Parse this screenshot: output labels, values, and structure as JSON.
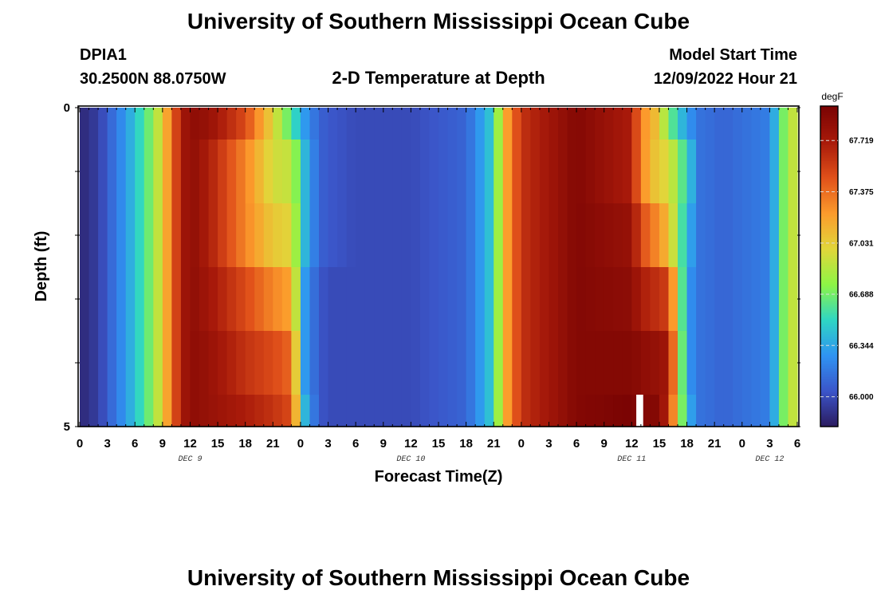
{
  "header": {
    "title": "University of Southern Mississippi Ocean Cube",
    "station_id": "DPIA1",
    "station_coords": "30.2500N  88.0750W",
    "plot_title": "2-D Temperature at Depth",
    "model_start_label": "Model Start Time",
    "model_start_value": "12/09/2022 Hour 21"
  },
  "footer": {
    "title": "University of Southern Mississippi Ocean Cube"
  },
  "chart_data": {
    "type": "heatmap",
    "title": "2-D Temperature at Depth",
    "xlabel": "Forecast Time(Z)",
    "ylabel": "Depth (ft)",
    "colorbar_unit": "degF",
    "x_tick_labels": [
      "0",
      "3",
      "6",
      "9",
      "12",
      "15",
      "18",
      "21",
      "0",
      "3",
      "6",
      "9",
      "12",
      "15",
      "18",
      "21",
      "0",
      "3",
      "6",
      "9",
      "12",
      "15",
      "18",
      "21",
      "0",
      "3",
      "6"
    ],
    "day_labels": [
      {
        "label": "DEC 9",
        "hour": 12
      },
      {
        "label": "DEC 10",
        "hour": 36
      },
      {
        "label": "DEC 11",
        "hour": 60
      },
      {
        "label": "DEC 12",
        "hour": 75
      }
    ],
    "y_tick_labels": [
      {
        "depth": 0,
        "label": "0"
      },
      {
        "depth": 5,
        "label": "5"
      }
    ],
    "xlim": [
      0,
      78
    ],
    "ylim": [
      5,
      0
    ],
    "depth_layers": [
      {
        "top": 0,
        "bottom": 0.5
      },
      {
        "top": 0.5,
        "bottom": 1.5
      },
      {
        "top": 1.5,
        "bottom": 2.5
      },
      {
        "top": 2.5,
        "bottom": 3.5
      },
      {
        "top": 3.5,
        "bottom": 4.5
      },
      {
        "top": 4.5,
        "bottom": 5
      }
    ],
    "colorbar": {
      "min": 65.8,
      "max": 67.95,
      "ticks": [
        66.0,
        66.344,
        66.688,
        67.031,
        67.375,
        67.719
      ],
      "tick_labels": [
        "66.000",
        "66.344",
        "66.688",
        "67.031",
        "67.375",
        "67.719"
      ]
    },
    "colors": {
      "frame": "#000000",
      "missing": "#ffffff",
      "stops": [
        "#2b1a5e",
        "#3b55c9",
        "#2f93f2",
        "#2fd6c4",
        "#8ef545",
        "#e1d63a",
        "#fc9b2c",
        "#e0501a",
        "#a81a0a",
        "#7a0403"
      ]
    },
    "keyframes_hours": [
      0,
      2,
      5,
      8,
      9.5,
      11,
      12,
      14,
      18,
      21,
      23,
      24.5,
      26,
      27,
      30,
      36,
      42,
      45,
      46,
      48,
      54,
      60,
      61,
      63,
      64,
      66,
      67.5,
      70,
      75,
      76.5,
      78
    ],
    "temperature_rows": [
      [
        65.85,
        65.95,
        66.3,
        66.75,
        67.2,
        67.7,
        67.85,
        67.8,
        67.5,
        67.0,
        66.6,
        66.3,
        66.1,
        66.05,
        66.0,
        66.0,
        66.1,
        66.5,
        67.1,
        67.6,
        67.9,
        67.7,
        67.3,
        67.05,
        66.7,
        66.3,
        66.15,
        66.1,
        66.2,
        66.7,
        67.0
      ],
      [
        65.85,
        65.95,
        66.3,
        66.75,
        67.2,
        67.7,
        67.85,
        67.7,
        67.3,
        66.95,
        66.9,
        66.4,
        66.1,
        66.05,
        66.0,
        66.0,
        66.1,
        66.5,
        67.1,
        67.6,
        67.9,
        67.7,
        67.3,
        67.0,
        67.0,
        66.5,
        66.15,
        66.1,
        66.2,
        66.7,
        67.0
      ],
      [
        65.85,
        65.95,
        66.3,
        66.75,
        67.2,
        67.7,
        67.85,
        67.7,
        67.3,
        67.05,
        67.0,
        66.4,
        66.1,
        66.05,
        66.0,
        66.0,
        66.1,
        66.5,
        67.1,
        67.6,
        67.9,
        67.8,
        67.5,
        67.25,
        67.1,
        66.4,
        66.15,
        66.1,
        66.2,
        66.7,
        67.0
      ],
      [
        65.85,
        65.95,
        66.3,
        66.75,
        67.2,
        67.7,
        67.85,
        67.75,
        67.5,
        67.3,
        67.2,
        66.3,
        66.05,
        66.0,
        66.0,
        66.0,
        66.1,
        66.5,
        67.1,
        67.6,
        67.9,
        67.85,
        67.7,
        67.6,
        67.55,
        66.3,
        66.15,
        66.1,
        66.2,
        66.7,
        67.0
      ],
      [
        65.85,
        65.95,
        66.3,
        66.75,
        67.2,
        67.7,
        67.85,
        67.8,
        67.6,
        67.5,
        67.4,
        66.3,
        66.05,
        66.0,
        66.0,
        66.0,
        66.1,
        66.5,
        67.1,
        67.6,
        67.9,
        67.9,
        67.85,
        67.8,
        67.75,
        66.3,
        66.15,
        66.1,
        66.2,
        66.7,
        67.0
      ],
      [
        65.85,
        65.95,
        66.3,
        66.75,
        67.2,
        67.7,
        67.85,
        67.8,
        67.7,
        67.6,
        67.5,
        66.4,
        66.05,
        66.0,
        66.0,
        66.0,
        66.1,
        66.5,
        67.1,
        67.6,
        67.9,
        67.95,
        67.9,
        67.9,
        67.6,
        66.4,
        66.15,
        66.1,
        66.2,
        66.7,
        67.0
      ]
    ],
    "missing_cells": [
      {
        "layer_index": 5,
        "hour_start": 60.5,
        "hour_end": 61.25
      }
    ]
  }
}
